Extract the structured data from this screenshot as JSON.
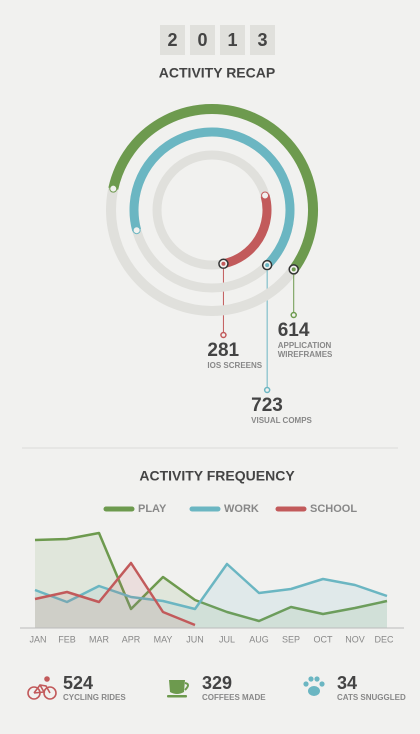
{
  "year": [
    "2",
    "0",
    "1",
    "3"
  ],
  "chart_data": [
    {
      "type": "radial",
      "title": "ACTIVITY RECAP",
      "categories": [
        "IOS SCREENS",
        "VISUAL COMPS",
        "APPLICATION WIREFRAMES"
      ],
      "values": [
        281,
        723,
        614
      ],
      "colors": [
        "#c25a5b",
        "#6bb6c2",
        "#6d9a4e"
      ]
    },
    {
      "type": "line",
      "title": "ACTIVITY FREQUENCY",
      "categories": [
        "JAN",
        "FEB",
        "MAR",
        "APR",
        "MAY",
        "JUN",
        "JUL",
        "AUG",
        "SEP",
        "OCT",
        "NOV",
        "DEC"
      ],
      "ylim": [
        0,
        100
      ],
      "series": [
        {
          "name": "PLAY",
          "color": "#6d9a4e",
          "values": [
            88,
            89,
            95,
            19,
            51,
            28,
            16,
            7,
            21,
            14,
            20,
            27
          ]
        },
        {
          "name": "WORK",
          "color": "#6bb6c2",
          "values": [
            38,
            26,
            42,
            31,
            27,
            19,
            64,
            35,
            39,
            49,
            43,
            32
          ]
        },
        {
          "name": "SCHOOL",
          "color": "#c25a5b",
          "values": [
            29,
            36,
            26,
            65,
            16,
            3,
            null,
            null,
            null,
            null,
            null,
            null
          ]
        }
      ]
    }
  ],
  "stats": [
    {
      "value": 524,
      "label": "CYCLING RIDES"
    },
    {
      "value": 329,
      "label": "COFFEES MADE"
    },
    {
      "value": 34,
      "label": "CATS SNUGGLED"
    }
  ]
}
